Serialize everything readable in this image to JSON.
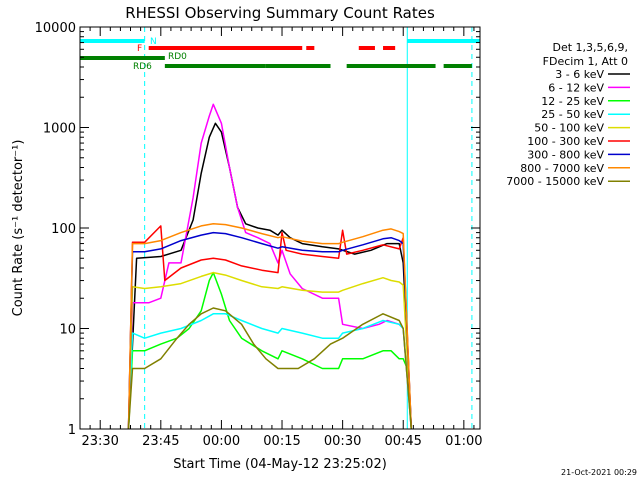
{
  "chart_data": {
    "type": "line",
    "title": "RHESSI Observing Summary Count Rates",
    "xlabel": "Start Time (04-May-12 23:25:02)",
    "ylabel": "Count Rate (s⁻¹ detector⁻¹)",
    "x_unit": "minutes after 23:25:02",
    "xlim": [
      0,
      99
    ],
    "ylim": [
      1,
      10000
    ],
    "yscale": "log",
    "x_ticks": [
      {
        "value": 5,
        "label": "23:30"
      },
      {
        "value": 20,
        "label": "23:45"
      },
      {
        "value": 35,
        "label": "00:00"
      },
      {
        "value": 50,
        "label": "00:15"
      },
      {
        "value": 65,
        "label": "00:30"
      },
      {
        "value": 80,
        "label": "00:45"
      },
      {
        "value": 95,
        "label": "01:00"
      }
    ],
    "y_ticks": [
      {
        "value": 1,
        "label": "1"
      },
      {
        "value": 10,
        "label": "10"
      },
      {
        "value": 100,
        "label": "100"
      },
      {
        "value": 1000,
        "label": "1000"
      },
      {
        "value": 10000,
        "label": "10000"
      }
    ],
    "legend_header": [
      "Det 1,3,5,6,9,",
      "FDecim 1, Att 0"
    ],
    "legend_position": "right",
    "series": [
      {
        "name": "3 - 6 keV",
        "color": "#000000",
        "points": [
          [
            12,
            1
          ],
          [
            14,
            50
          ],
          [
            20,
            52
          ],
          [
            25,
            60
          ],
          [
            28,
            120
          ],
          [
            30,
            350
          ],
          [
            32,
            800
          ],
          [
            33.5,
            1100
          ],
          [
            35,
            900
          ],
          [
            37,
            400
          ],
          [
            39,
            160
          ],
          [
            41,
            110
          ],
          [
            44,
            100
          ],
          [
            47,
            95
          ],
          [
            49,
            85
          ],
          [
            50,
            95
          ],
          [
            52,
            80
          ],
          [
            55,
            70
          ],
          [
            60,
            65
          ],
          [
            64,
            62
          ],
          [
            68,
            55
          ],
          [
            72,
            60
          ],
          [
            76,
            70
          ],
          [
            79,
            70
          ],
          [
            80,
            45
          ],
          [
            82,
            1
          ]
        ]
      },
      {
        "name": "6 - 12 keV",
        "color": "#ff00ff",
        "points": [
          [
            12,
            1
          ],
          [
            13,
            18
          ],
          [
            17,
            18
          ],
          [
            20,
            20
          ],
          [
            22,
            45
          ],
          [
            25,
            45
          ],
          [
            28,
            200
          ],
          [
            30,
            700
          ],
          [
            32,
            1300
          ],
          [
            33,
            1700
          ],
          [
            35,
            1100
          ],
          [
            37,
            400
          ],
          [
            39,
            160
          ],
          [
            41,
            90
          ],
          [
            44,
            80
          ],
          [
            47,
            70
          ],
          [
            49,
            45
          ],
          [
            50,
            60
          ],
          [
            52,
            35
          ],
          [
            55,
            25
          ],
          [
            60,
            20
          ],
          [
            64,
            20
          ],
          [
            65,
            11
          ],
          [
            70,
            10
          ],
          [
            74,
            11
          ],
          [
            76,
            12
          ],
          [
            79,
            11
          ],
          [
            80,
            10
          ],
          [
            82,
            1
          ]
        ]
      },
      {
        "name": "12 - 25 keV",
        "color": "#00ff00",
        "points": [
          [
            12,
            1
          ],
          [
            13,
            6
          ],
          [
            16,
            6
          ],
          [
            20,
            7
          ],
          [
            24,
            8
          ],
          [
            27,
            10
          ],
          [
            30,
            15
          ],
          [
            32,
            30
          ],
          [
            33,
            36
          ],
          [
            35,
            22
          ],
          [
            37,
            12
          ],
          [
            40,
            8
          ],
          [
            45,
            6
          ],
          [
            49,
            5
          ],
          [
            50,
            6
          ],
          [
            55,
            5
          ],
          [
            60,
            4
          ],
          [
            64,
            4
          ],
          [
            65,
            5
          ],
          [
            70,
            5
          ],
          [
            75,
            6
          ],
          [
            77,
            6
          ],
          [
            79,
            5
          ],
          [
            80,
            5
          ],
          [
            81,
            4
          ],
          [
            82,
            1
          ]
        ]
      },
      {
        "name": "25 - 50 keV",
        "color": "#00ffff",
        "points": [
          [
            12,
            1
          ],
          [
            13,
            9
          ],
          [
            16,
            8
          ],
          [
            20,
            9
          ],
          [
            25,
            10
          ],
          [
            30,
            12
          ],
          [
            33,
            14
          ],
          [
            36,
            14
          ],
          [
            40,
            12
          ],
          [
            45,
            10
          ],
          [
            49,
            9
          ],
          [
            50,
            10
          ],
          [
            55,
            9
          ],
          [
            60,
            8
          ],
          [
            64,
            8
          ],
          [
            65,
            9
          ],
          [
            70,
            10
          ],
          [
            75,
            12
          ],
          [
            79,
            11
          ],
          [
            80,
            10
          ],
          [
            82,
            1
          ]
        ]
      },
      {
        "name": "50 - 100 keV",
        "color": "#dddd00",
        "points": [
          [
            12,
            1
          ],
          [
            13,
            26
          ],
          [
            16,
            25
          ],
          [
            20,
            26
          ],
          [
            25,
            28
          ],
          [
            30,
            33
          ],
          [
            33,
            36
          ],
          [
            36,
            34
          ],
          [
            40,
            30
          ],
          [
            45,
            26
          ],
          [
            49,
            25
          ],
          [
            50,
            26
          ],
          [
            55,
            24
          ],
          [
            60,
            23
          ],
          [
            64,
            23
          ],
          [
            65,
            24
          ],
          [
            70,
            28
          ],
          [
            75,
            32
          ],
          [
            77,
            30
          ],
          [
            79,
            29
          ],
          [
            80,
            27
          ],
          [
            82,
            1
          ]
        ]
      },
      {
        "name": "100 - 300 keV",
        "color": "#ff0000",
        "points": [
          [
            12,
            1
          ],
          [
            13,
            72
          ],
          [
            16,
            72
          ],
          [
            20,
            105
          ],
          [
            21,
            30
          ],
          [
            25,
            40
          ],
          [
            30,
            48
          ],
          [
            33,
            50
          ],
          [
            36,
            48
          ],
          [
            40,
            42
          ],
          [
            45,
            38
          ],
          [
            49,
            36
          ],
          [
            50,
            90
          ],
          [
            51,
            60
          ],
          [
            55,
            55
          ],
          [
            60,
            52
          ],
          [
            64,
            50
          ],
          [
            65,
            95
          ],
          [
            66,
            55
          ],
          [
            70,
            60
          ],
          [
            75,
            68
          ],
          [
            79,
            62
          ],
          [
            80,
            80
          ],
          [
            82,
            1
          ]
        ]
      },
      {
        "name": "300 - 800 keV",
        "color": "#0000cc",
        "points": [
          [
            12,
            1
          ],
          [
            13,
            58
          ],
          [
            16,
            58
          ],
          [
            20,
            62
          ],
          [
            25,
            75
          ],
          [
            30,
            85
          ],
          [
            33,
            90
          ],
          [
            36,
            88
          ],
          [
            40,
            80
          ],
          [
            45,
            70
          ],
          [
            49,
            63
          ],
          [
            50,
            65
          ],
          [
            55,
            60
          ],
          [
            60,
            58
          ],
          [
            64,
            58
          ],
          [
            65,
            60
          ],
          [
            70,
            68
          ],
          [
            75,
            78
          ],
          [
            77,
            80
          ],
          [
            79,
            75
          ],
          [
            80,
            70
          ],
          [
            82,
            1
          ]
        ]
      },
      {
        "name": "800 - 7000 keV",
        "color": "#ff8800",
        "points": [
          [
            12,
            1
          ],
          [
            13,
            70
          ],
          [
            16,
            70
          ],
          [
            20,
            75
          ],
          [
            25,
            90
          ],
          [
            30,
            105
          ],
          [
            33,
            110
          ],
          [
            36,
            108
          ],
          [
            40,
            100
          ],
          [
            45,
            88
          ],
          [
            49,
            80
          ],
          [
            50,
            82
          ],
          [
            55,
            74
          ],
          [
            60,
            70
          ],
          [
            64,
            70
          ],
          [
            65,
            72
          ],
          [
            70,
            82
          ],
          [
            75,
            95
          ],
          [
            77,
            98
          ],
          [
            79,
            92
          ],
          [
            80,
            88
          ],
          [
            82,
            1
          ]
        ]
      },
      {
        "name": "7000 - 15000 keV",
        "color": "#808000",
        "points": [
          [
            12,
            1
          ],
          [
            13,
            4
          ],
          [
            16,
            4
          ],
          [
            20,
            5
          ],
          [
            24,
            8
          ],
          [
            27,
            11
          ],
          [
            30,
            14
          ],
          [
            33,
            16
          ],
          [
            36,
            15
          ],
          [
            40,
            11
          ],
          [
            43,
            7
          ],
          [
            46,
            5
          ],
          [
            49,
            4
          ],
          [
            50,
            4
          ],
          [
            54,
            4
          ],
          [
            58,
            5
          ],
          [
            62,
            7
          ],
          [
            65,
            8
          ],
          [
            70,
            11
          ],
          [
            75,
            14
          ],
          [
            79,
            12
          ],
          [
            80,
            10
          ],
          [
            82,
            1
          ]
        ]
      }
    ],
    "state_bars": [
      {
        "label": "N",
        "color": "#00ffff",
        "segments": [
          [
            0,
            16
          ],
          [
            81,
            99
          ]
        ]
      },
      {
        "label": "F",
        "color": "#ff0000",
        "segments": [
          [
            17,
            55
          ],
          [
            56,
            58
          ],
          [
            69,
            73
          ],
          [
            75,
            78
          ]
        ]
      },
      {
        "label": "RD0",
        "color": "#008000",
        "segments": [
          [
            0,
            21
          ]
        ]
      },
      {
        "label": "RD6",
        "color": "#008000",
        "segments": [
          [
            21,
            46
          ],
          [
            46,
            62
          ],
          [
            66,
            88
          ],
          [
            90,
            97
          ]
        ]
      }
    ],
    "vertical_markers": [
      {
        "color": "#00ffff",
        "style": "solid",
        "x": 0
      },
      {
        "color": "#00ffff",
        "style": "dashed",
        "x": 16
      },
      {
        "color": "#00ffff",
        "style": "solid",
        "x": 81
      },
      {
        "color": "#00ffff",
        "style": "dashed",
        "x": 97
      }
    ]
  },
  "footer": {
    "timestamp": "21-Oct-2021 00:29"
  }
}
